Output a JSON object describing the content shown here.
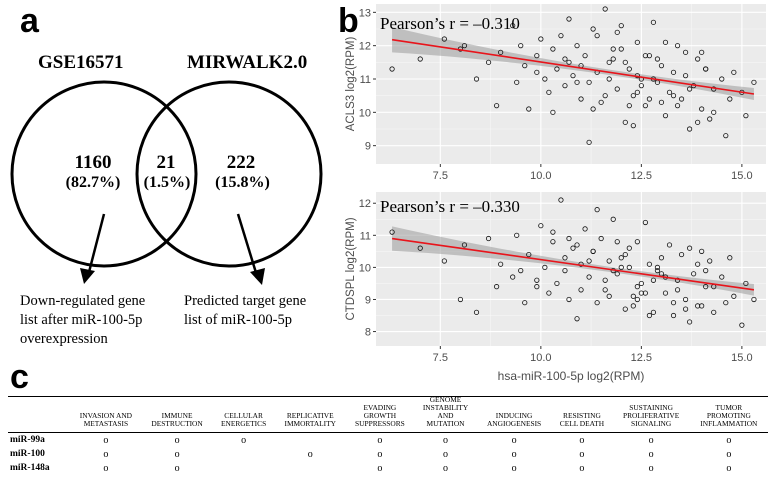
{
  "panels": {
    "a": "a",
    "b": "b",
    "c": "c"
  },
  "venn": {
    "left_title": "GSE16571",
    "right_title": "MIRWALK2.0",
    "left_count": "1160",
    "left_pct": "(82.7%)",
    "mid_count": "21",
    "mid_pct": "(1.5%)",
    "right_count": "222",
    "right_pct": "(15.8%)",
    "left_note": [
      "Down-regulated gene",
      "list after miR-100-5p",
      "overexpression"
    ],
    "right_note": [
      "Predicted target gene",
      "list of miR-100-5p"
    ]
  },
  "chart_data": [
    {
      "type": "scatter",
      "annotation": "Pearson’s r = –0.310",
      "xlabel": "",
      "ylabel": "ACLS3 log2(RPM)",
      "xlim": [
        5.9,
        15.6
      ],
      "ylim": [
        8.45,
        13.25
      ],
      "xticks": [
        "7.5",
        "10.0",
        "12.5",
        "15.0"
      ],
      "yticks": [
        "9",
        "10",
        "11",
        "12",
        "13"
      ],
      "fit": {
        "x": [
          6.3,
          15.3
        ],
        "y": [
          12.18,
          10.55
        ]
      },
      "x": [
        6.3,
        7.0,
        7.6,
        8.0,
        8.1,
        8.4,
        8.7,
        8.9,
        9.0,
        9.3,
        9.4,
        9.5,
        9.6,
        9.7,
        9.9,
        10.0,
        10.1,
        10.2,
        10.3,
        10.4,
        10.5,
        10.6,
        10.7,
        10.8,
        10.9,
        11.0,
        11.1,
        11.2,
        11.3,
        11.4,
        11.5,
        11.6,
        11.7,
        11.8,
        11.9,
        12.0,
        12.1,
        12.2,
        12.3,
        12.4,
        12.5,
        12.6,
        12.7,
        12.8,
        12.9,
        13.0,
        13.1,
        13.2,
        13.3,
        13.4,
        13.5,
        13.6,
        13.7,
        13.8,
        13.9,
        14.0,
        14.1,
        14.2,
        14.3,
        14.5,
        14.6,
        14.7,
        14.8,
        15.0,
        15.1,
        15.3,
        11.4,
        11.6,
        12.1,
        12.5,
        11.8,
        10.7,
        12.9,
        12.3,
        13.4,
        14.0,
        10.3,
        9.9,
        11.2,
        12.7,
        13.1,
        13.7,
        11.0,
        12.0,
        12.4,
        13.0,
        13.6,
        14.3,
        10.9,
        11.7,
        12.2,
        12.8,
        13.3,
        14.1,
        11.3,
        12.6,
        13.9,
        10.6,
        11.9,
        12.4
      ],
      "y": [
        11.3,
        11.6,
        12.2,
        11.9,
        12.0,
        11.0,
        11.5,
        10.2,
        11.8,
        12.6,
        10.9,
        12.0,
        11.4,
        10.1,
        11.7,
        12.2,
        11.0,
        10.6,
        11.9,
        11.3,
        12.3,
        10.8,
        11.5,
        11.1,
        12.0,
        10.4,
        11.7,
        10.9,
        12.5,
        11.2,
        10.3,
        13.1,
        11.0,
        11.6,
        10.7,
        11.9,
        9.7,
        11.3,
        10.5,
        12.1,
        11.0,
        10.2,
        11.7,
        12.7,
        10.9,
        11.4,
        9.9,
        10.6,
        11.2,
        12.0,
        10.4,
        11.1,
        9.5,
        10.8,
        11.6,
        10.1,
        11.3,
        9.8,
        10.7,
        11.0,
        9.3,
        10.4,
        11.2,
        10.6,
        9.9,
        10.9,
        12.3,
        10.5,
        11.5,
        10.8,
        11.9,
        12.8,
        11.6,
        9.6,
        10.2,
        11.8,
        10.0,
        11.2,
        9.1,
        10.4,
        12.1,
        10.7,
        11.4,
        12.6,
        11.1,
        10.3,
        11.8,
        10.0,
        10.9,
        11.5,
        10.2,
        11.0,
        10.5,
        11.3,
        10.1,
        11.7,
        9.7,
        11.6,
        12.4,
        10.6
      ]
    },
    {
      "type": "scatter",
      "annotation": "Pearson’s r = –0.330",
      "xlabel": "hsa-miR-100-5p log2(RPM)",
      "ylabel": "CTDSPL log2(RPM)",
      "xlim": [
        5.9,
        15.6
      ],
      "ylim": [
        7.55,
        12.35
      ],
      "xticks": [
        "7.5",
        "10.0",
        "12.5",
        "15.0"
      ],
      "yticks": [
        "8",
        "9",
        "10",
        "11",
        "12"
      ],
      "fit": {
        "x": [
          6.3,
          15.3
        ],
        "y": [
          10.9,
          9.3
        ]
      },
      "x": [
        6.3,
        7.0,
        7.6,
        8.0,
        8.1,
        8.4,
        8.7,
        8.9,
        9.0,
        9.3,
        9.4,
        9.5,
        9.6,
        9.7,
        9.9,
        10.0,
        10.1,
        10.2,
        10.3,
        10.4,
        10.5,
        10.6,
        10.7,
        10.8,
        10.9,
        11.0,
        11.1,
        11.2,
        11.3,
        11.4,
        11.5,
        11.6,
        11.7,
        11.8,
        11.9,
        12.0,
        12.1,
        12.2,
        12.3,
        12.4,
        12.5,
        12.6,
        12.7,
        12.8,
        12.9,
        13.0,
        13.1,
        13.2,
        13.3,
        13.4,
        13.5,
        13.6,
        13.7,
        13.8,
        13.9,
        14.0,
        14.1,
        14.2,
        14.3,
        14.5,
        14.6,
        14.7,
        14.8,
        15.0,
        15.1,
        15.3,
        11.4,
        11.6,
        12.1,
        12.5,
        11.8,
        10.7,
        12.9,
        12.3,
        13.4,
        14.0,
        10.3,
        9.9,
        11.2,
        12.7,
        13.1,
        13.7,
        11.0,
        12.0,
        12.4,
        13.0,
        13.6,
        14.3,
        10.9,
        11.7,
        12.2,
        12.8,
        13.3,
        14.1,
        11.3,
        12.6,
        13.9,
        10.6,
        11.9,
        12.4
      ],
      "y": [
        11.1,
        10.6,
        10.2,
        9.0,
        10.7,
        8.6,
        10.9,
        9.4,
        10.1,
        9.7,
        11.0,
        9.9,
        8.9,
        10.4,
        9.6,
        11.3,
        10.0,
        9.2,
        10.8,
        9.5,
        12.1,
        10.3,
        9.0,
        10.6,
        8.4,
        10.1,
        11.2,
        9.7,
        10.5,
        8.9,
        10.9,
        9.3,
        10.2,
        11.5,
        9.8,
        10.0,
        8.7,
        10.6,
        9.1,
        10.8,
        9.5,
        11.4,
        10.1,
        8.6,
        9.9,
        10.3,
        9.2,
        10.7,
        8.9,
        9.6,
        10.4,
        9.0,
        8.3,
        9.8,
        10.1,
        8.8,
        9.4,
        10.2,
        8.6,
        9.7,
        8.9,
        10.3,
        9.1,
        8.2,
        9.5,
        9.0,
        11.8,
        9.6,
        10.4,
        9.2,
        9.9,
        10.9,
        10.0,
        8.8,
        9.3,
        10.5,
        11.1,
        9.4,
        10.2,
        8.5,
        9.7,
        10.6,
        9.3,
        10.3,
        9.0,
        9.8,
        8.7,
        9.4,
        10.7,
        9.1,
        10.0,
        9.6,
        8.5,
        9.9,
        10.5,
        9.2,
        8.8,
        9.9,
        10.8,
        9.4
      ]
    }
  ],
  "table": {
    "columns": [
      [
        "INVASION AND",
        "METASTASIS"
      ],
      [
        "IMMUNE",
        "DESTRUCTION"
      ],
      [
        "CELLULAR",
        "ENERGETICS"
      ],
      [
        "REPLICATIVE",
        "IMMORTALITY"
      ],
      [
        "EVADING",
        "GROWTH",
        "SUPPRESSORS"
      ],
      [
        "GENOME",
        "INSTABILITY",
        "AND",
        "MUTATION"
      ],
      [
        "INDUCING",
        "ANGIOGENESIS"
      ],
      [
        "RESISTING",
        "CELL DEATH"
      ],
      [
        "SUSTAINING",
        "PROLIFERATIVE",
        "SIGNALING"
      ],
      [
        "TUMOR",
        "PROMOTING",
        "INFLAMMATION"
      ]
    ],
    "rows": [
      {
        "name": "miR-99a",
        "cells": [
          "o",
          "o",
          "o",
          "",
          "o",
          "o",
          "o",
          "o",
          "o",
          "o"
        ]
      },
      {
        "name": "miR-100",
        "cells": [
          "o",
          "o",
          "",
          "o",
          "o",
          "o",
          "o",
          "o",
          "o",
          "o"
        ]
      },
      {
        "name": "miR-148a",
        "cells": [
          "o",
          "o",
          "",
          "",
          "o",
          "o",
          "o",
          "o",
          "o",
          "o"
        ]
      }
    ]
  }
}
